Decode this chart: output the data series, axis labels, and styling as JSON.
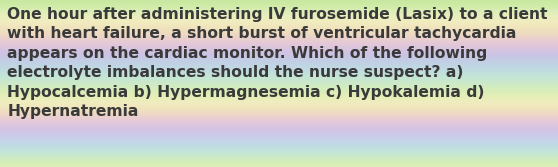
{
  "text": "One hour after administering IV furosemide (Lasix) to a client\nwith heart failure, a short burst of ventricular tachycardia\nappears on the cardiac monitor. Which of the following\nelectrolyte imbalances should the nurse suspect? a)\nHypocalcemia b) Hypermagnesemia c) Hypokalemia d)\nHypernatremia",
  "text_color": "#3a3a3a",
  "font_size": 11.2,
  "figsize": [
    5.58,
    1.67
  ],
  "dpi": 100,
  "stripe_colors": [
    "#c8e8a0",
    "#d0eca8",
    "#ddeeb8",
    "#eaeebc",
    "#f2ecc0",
    "#f0e4bc",
    "#eedcc0",
    "#ead0cc",
    "#e4c8d8",
    "#d8c4e0",
    "#ccc4e4",
    "#c4cce4",
    "#c0d4e4",
    "#c0dce0",
    "#c4e4d8",
    "#cae8cc",
    "#d2ecc0",
    "#dceeb8",
    "#e8eeb8",
    "#f0ecc0",
    "#f0e4bc",
    "#eed8c4",
    "#e8ccd4",
    "#dfc6e0",
    "#d4c4e4",
    "#cccce8",
    "#c4d4e8",
    "#c0dce4",
    "#c4e4da",
    "#cceac8",
    "#d4eeb8",
    "#e0eeb8"
  ]
}
